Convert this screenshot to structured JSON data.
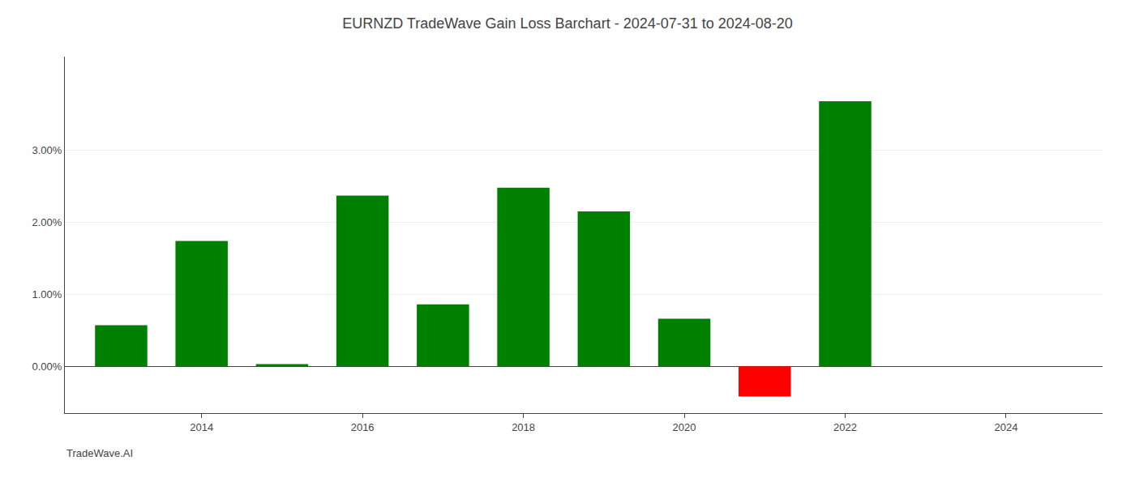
{
  "chart_data": {
    "type": "bar",
    "title": "EURNZD TradeWave Gain Loss Barchart - 2024-07-31 to 2024-08-20",
    "annotations": [
      {
        "text": "TradeWave.AI"
      }
    ],
    "x": [
      2013,
      2014,
      2015,
      2016,
      2017,
      2018,
      2019,
      2020,
      2021,
      2022,
      2023
    ],
    "values": [
      0.0057,
      0.0174,
      0.0003,
      0.0237,
      0.0086,
      0.0248,
      0.0215,
      0.0066,
      -0.0042,
      0.0368,
      0.0
    ],
    "colors": [
      "#008000",
      "#008000",
      "#008000",
      "#008000",
      "#008000",
      "#008000",
      "#008000",
      "#008000",
      "#ff0000",
      "#008000",
      "#008000"
    ],
    "xlim": [
      2012.3,
      2025.2
    ],
    "xticks": [
      2014,
      2016,
      2018,
      2020,
      2022,
      2024
    ],
    "ylim": [
      -0.0065,
      0.043
    ],
    "yticks": [
      {
        "value": 0.0,
        "label": "0.00%"
      },
      {
        "value": 0.01,
        "label": "1.00%"
      },
      {
        "value": 0.02,
        "label": "2.00%"
      },
      {
        "value": 0.03,
        "label": "3.00%"
      }
    ],
    "grid": true
  }
}
